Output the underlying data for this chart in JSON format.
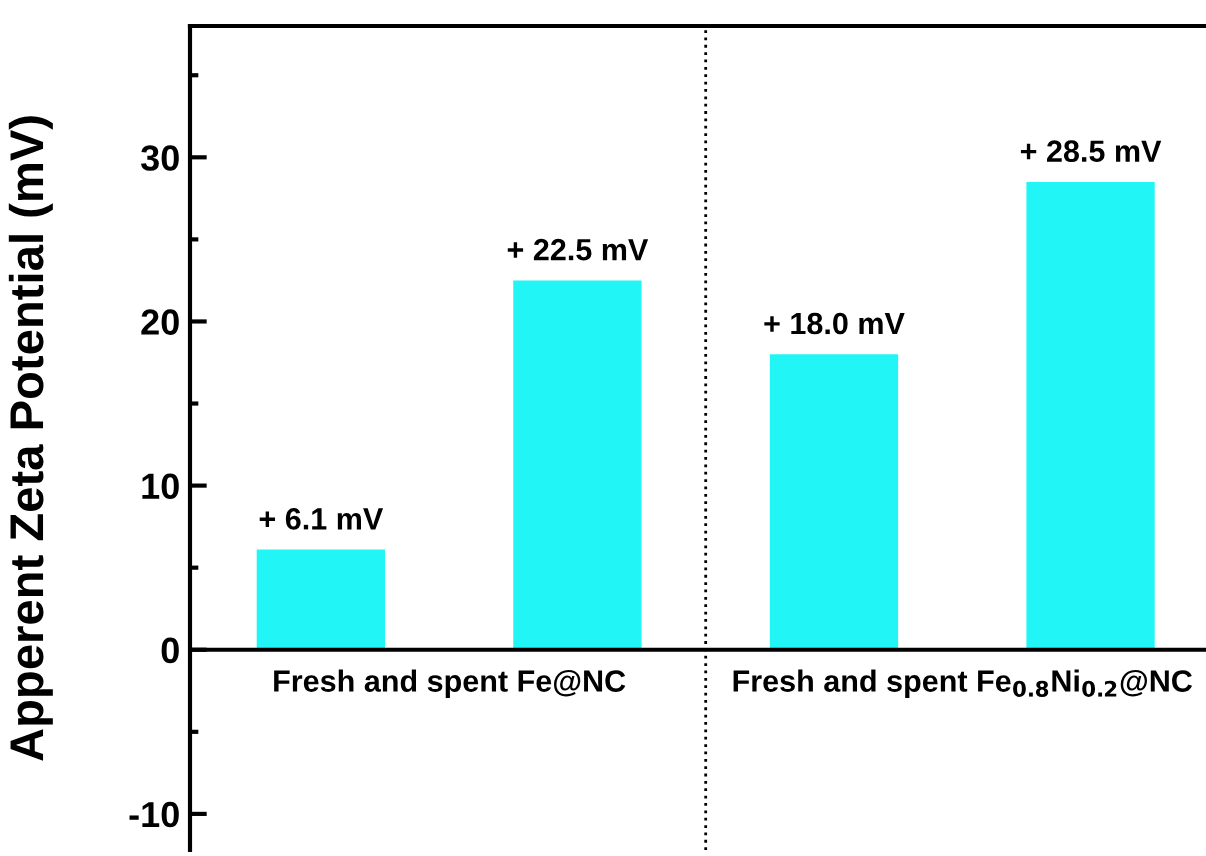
{
  "chart_data": {
    "type": "bar",
    "ylabel": "Apperent Zeta Potential (mV)",
    "categories": [
      null,
      null,
      null,
      null
    ],
    "values": [
      6.1,
      22.5,
      18.0,
      28.5
    ],
    "value_labels": [
      "+ 6.1 mV",
      "+ 22.5 mV",
      "+ 18.0 mV",
      "+ 28.5 mV"
    ],
    "color": "#22f5f5",
    "ylim": [
      -12.2,
      38
    ],
    "yticks": [
      -10,
      0,
      10,
      20,
      30
    ],
    "ref_lines": [
      {
        "axis": "y",
        "value": 0,
        "line_style": "solid",
        "color": "#000000"
      }
    ],
    "annotations": [
      "Fresh and spent Fe@NC",
      "Fresh and spent Fe$_{0.8}$Ni$_{0.2}$@NC"
    ],
    "grid": false,
    "legend": false
  }
}
